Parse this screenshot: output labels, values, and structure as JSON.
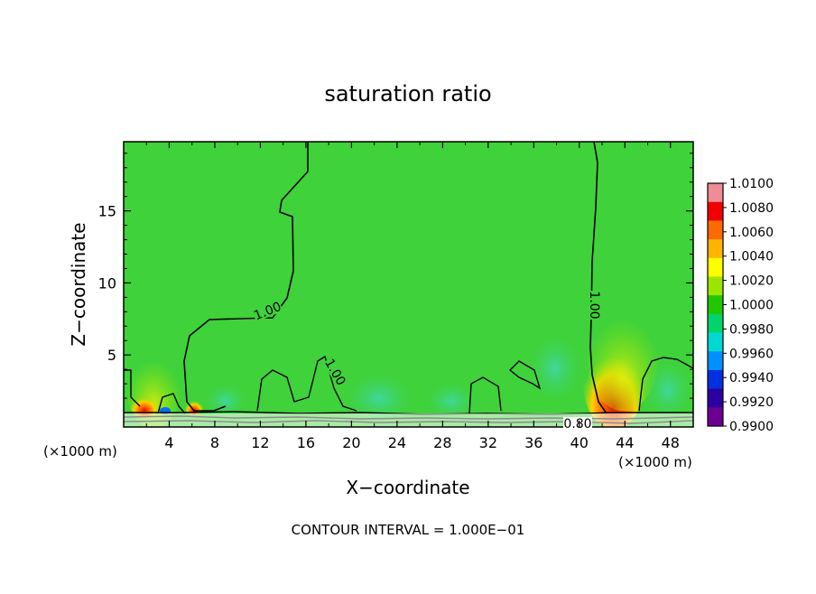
{
  "chart_data": {
    "type": "heatmap",
    "title": "saturation ratio",
    "xlabel": "X−coordinate",
    "ylabel": "Z−coordinate",
    "x_unit_left": "(×1000 m)",
    "x_unit_right": "(×1000 m)",
    "footer": "CONTOUR INTERVAL = 1.000E−01",
    "xlim": [
      0,
      50
    ],
    "ylim": [
      0,
      19.8
    ],
    "x_ticks": [
      "4",
      "8",
      "12",
      "16",
      "20",
      "24",
      "28",
      "32",
      "36",
      "40",
      "44",
      "48"
    ],
    "y_ticks": [
      "5",
      "10",
      "15"
    ],
    "colorbar": {
      "labels": [
        "1.0100",
        "1.0080",
        "1.0060",
        "1.0040",
        "1.0020",
        "1.0000",
        "0.9980",
        "0.9960",
        "0.9940",
        "0.9920",
        "0.9900"
      ],
      "colors": [
        "#f08c96",
        "#f00000",
        "#ff6a00",
        "#ffb400",
        "#ffff00",
        "#9be600",
        "#20c800",
        "#00d46a",
        "#00d8d0",
        "#0090ff",
        "#0030e0",
        "#2c00a0",
        "#6c0090"
      ]
    },
    "contour_labels": [
      "1.00",
      "1.00",
      "1.00",
      "0.80"
    ],
    "colors": {
      "field": "#3fd23a",
      "near_one_low": "#58d8a8",
      "contour": "#000000"
    }
  }
}
